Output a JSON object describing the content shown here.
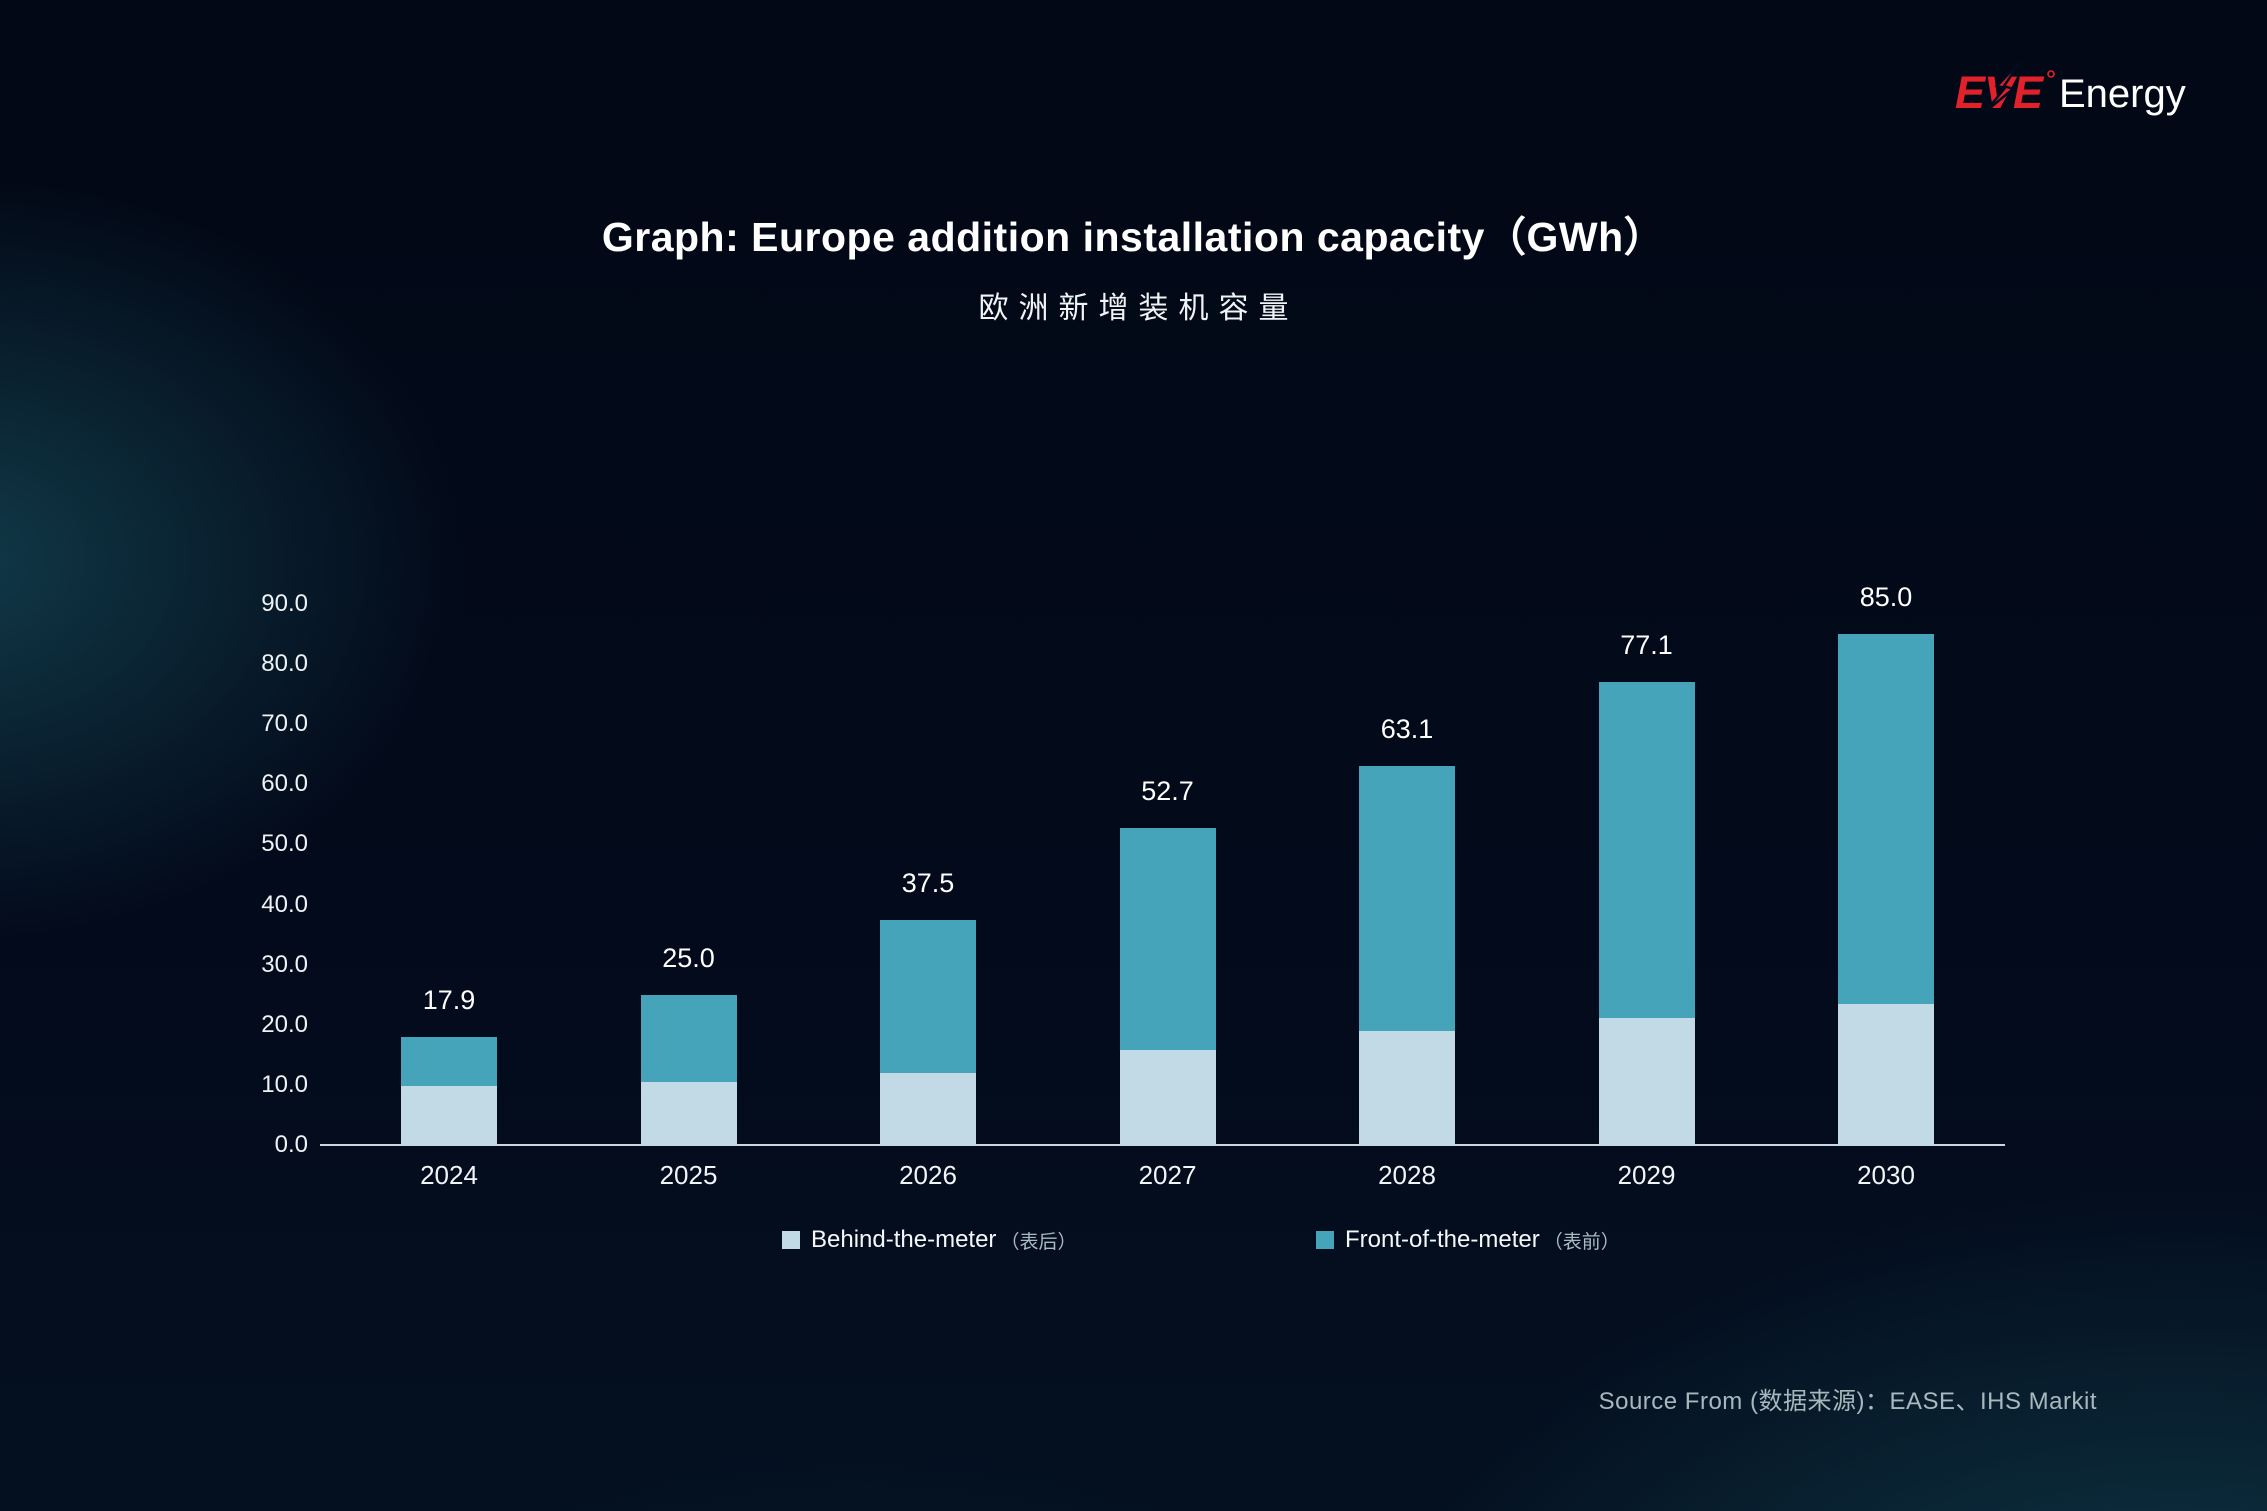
{
  "logo": {
    "eve": "EVE",
    "energy": "Energy",
    "brand_red": "#e2222b"
  },
  "chart_data": {
    "type": "bar",
    "stacked": true,
    "title": "Graph: Europe addition installation capacity（GWh）",
    "subtitle": "欧洲新增装机容量",
    "categories": [
      "2024",
      "2025",
      "2026",
      "2027",
      "2028",
      "2029",
      "2030"
    ],
    "series": [
      {
        "name": "Behind-the-meter（表后）",
        "color": "#c2dae5",
        "values": [
          9.8,
          10.4,
          12.0,
          15.8,
          19.0,
          21.1,
          23.4
        ]
      },
      {
        "name": "Front-of-the-meter（表前）",
        "color": "#46a4ba",
        "values": [
          8.1,
          14.6,
          25.5,
          36.9,
          44.1,
          56.0,
          61.6
        ]
      }
    ],
    "totals": [
      17.9,
      25.0,
      37.5,
      52.7,
      63.1,
      77.1,
      85.0
    ],
    "total_labels": [
      "17.9",
      "25.0",
      "37.5",
      "52.7",
      "63.1",
      "77.1",
      "85.0"
    ],
    "xlabel": "",
    "ylabel": "",
    "ylim": [
      0,
      90
    ],
    "ytick_step": 10,
    "yticks": [
      "90.0",
      "80.0",
      "70.0",
      "60.0",
      "50.0",
      "40.0",
      "30.0",
      "20.0",
      "10.0",
      "0.0"
    ],
    "grid": false,
    "legend_position": "bottom"
  },
  "legend": {
    "items": [
      {
        "label": "Behind-the-meter",
        "note": "（表后）",
        "color": "#c2dae5"
      },
      {
        "label": "Front-of-the-meter",
        "note": "（表前）",
        "color": "#46a4ba"
      }
    ]
  },
  "source": {
    "text": "Source From (数据来源)：EASE、IHS Markit"
  }
}
